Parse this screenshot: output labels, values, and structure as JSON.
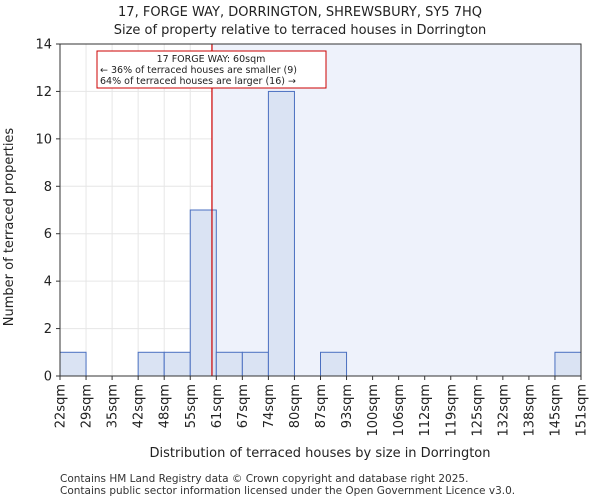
{
  "chart_data": {
    "type": "bar",
    "title": "17, FORGE WAY, DORRINGTON, SHREWSBURY, SY5 7HQ",
    "subtitle": "Size of property relative to terraced houses in Dorrington",
    "xlabel": "Distribution of terraced houses by size in Dorrington",
    "ylabel": "Number of terraced properties",
    "bin_edges": [
      "22sqm",
      "29sqm",
      "35sqm",
      "42sqm",
      "48sqm",
      "55sqm",
      "61sqm",
      "67sqm",
      "74sqm",
      "80sqm",
      "87sqm",
      "93sqm",
      "100sqm",
      "106sqm",
      "112sqm",
      "119sqm",
      "125sqm",
      "132sqm",
      "138sqm",
      "145sqm",
      "151sqm"
    ],
    "values": [
      1,
      0,
      0,
      1,
      1,
      7,
      1,
      1,
      12,
      0,
      1,
      0,
      0,
      0,
      0,
      0,
      0,
      0,
      0,
      1
    ],
    "yticks": [
      0,
      2,
      4,
      6,
      8,
      10,
      12,
      14
    ],
    "ylim": [
      0,
      14
    ],
    "property_size": 60,
    "annotation": {
      "line1": "17 FORGE WAY: 60sqm",
      "line2": "← 36% of terraced houses are smaller (9)",
      "line3": "64% of terraced houses are larger (16) →"
    },
    "colors": {
      "bar_fill": "#dae3f3",
      "bar_edge": "#4a6fc0",
      "property_line": "#cc0000",
      "highlight": "#eef2fb"
    },
    "grid": true
  },
  "footer": {
    "line1": "Contains HM Land Registry data © Crown copyright and database right 2025.",
    "line2": "Contains public sector information licensed under the Open Government Licence v3.0."
  }
}
